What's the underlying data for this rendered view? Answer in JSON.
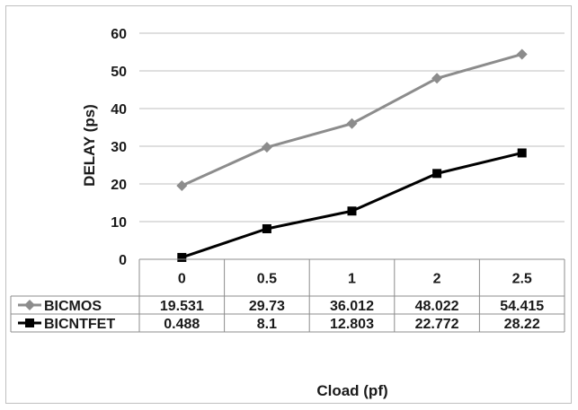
{
  "chart_data": {
    "type": "line",
    "categories": [
      "0",
      "0.5",
      "1",
      "2",
      "2.5"
    ],
    "series": [
      {
        "name": "BICMOS",
        "values": [
          19.531,
          29.73,
          36.012,
          48.022,
          54.415
        ],
        "value_labels": [
          "19.531",
          "29.73",
          "36.012",
          "48.022",
          "54.415"
        ],
        "color": "#8c8c8c",
        "marker": "diamond"
      },
      {
        "name": "BICNTFET",
        "values": [
          0.488,
          8.1,
          12.803,
          22.772,
          28.22
        ],
        "value_labels": [
          "0.488",
          "8.1",
          "12.803",
          "22.772",
          "28.22"
        ],
        "color": "#000000",
        "marker": "square"
      }
    ],
    "title": "",
    "xlabel": "Cload (pf)",
    "ylabel": "DELAY (ps)",
    "ylim": [
      0,
      60
    ],
    "yticks": [
      0,
      10,
      20,
      30,
      40,
      50,
      60
    ],
    "grid": true,
    "legend": "data-table-left"
  }
}
